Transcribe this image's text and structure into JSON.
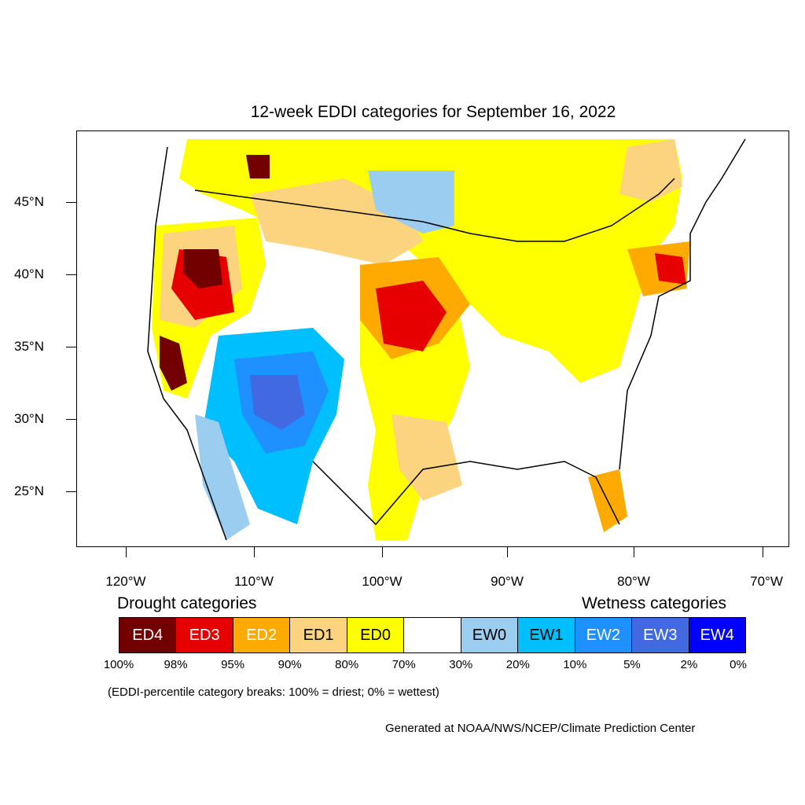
{
  "title": "12-week EDDI categories for September 16, 2022",
  "lat_labels": [
    "45°N",
    "40°N",
    "35°N",
    "30°N",
    "25°N"
  ],
  "lon_labels": [
    "120°W",
    "110°W",
    "100°W",
    "90°W",
    "80°W",
    "70°W"
  ],
  "legend": {
    "drought_title": "Drought categories",
    "wetness_title": "Wetness categories",
    "categories": [
      {
        "label": "ED4",
        "color": "#730000",
        "text_color": "#ffffff"
      },
      {
        "label": "ED3",
        "color": "#e60000",
        "text_color": "#ffffff"
      },
      {
        "label": "ED2",
        "color": "#ffaa00",
        "text_color": "#ffffff"
      },
      {
        "label": "ED1",
        "color": "#fcd37f",
        "text_color": "#000000"
      },
      {
        "label": "ED0",
        "color": "#ffff00",
        "text_color": "#000000"
      },
      {
        "label": "",
        "color": "#ffffff",
        "text_color": "#000000"
      },
      {
        "label": "EW0",
        "color": "#9bcdf0",
        "text_color": "#000000"
      },
      {
        "label": "EW1",
        "color": "#00bfff",
        "text_color": "#000000"
      },
      {
        "label": "EW2",
        "color": "#1e90ff",
        "text_color": "#ffffff"
      },
      {
        "label": "EW3",
        "color": "#4169e1",
        "text_color": "#ffffff"
      },
      {
        "label": "EW4",
        "color": "#0000ff",
        "text_color": "#ffffff"
      }
    ],
    "percentiles": [
      "100%",
      "98%",
      "95%",
      "90%",
      "80%",
      "70%",
      "30%",
      "20%",
      "10%",
      "5%",
      "2%",
      "0%"
    ]
  },
  "note": "(EDDI-percentile category breaks: 100% = driest; 0% = wettest)",
  "credit": "Generated at NOAA/NWS/NCEP/Climate Prediction Center"
}
